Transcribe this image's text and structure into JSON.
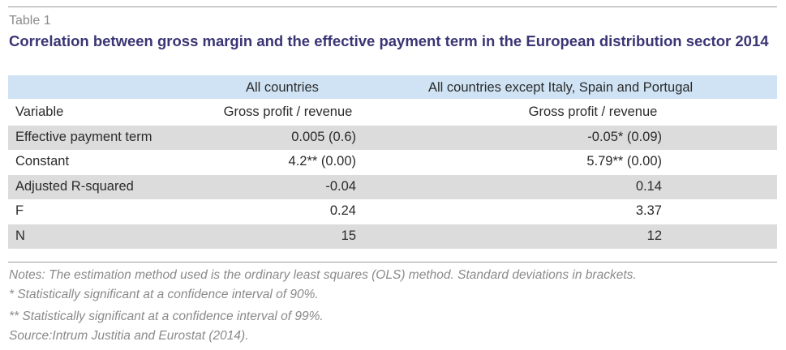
{
  "table_label": "Table 1",
  "title": "Correlation between gross margin and the effective payment term in the European distribution sector 2014",
  "columns": {
    "group_a": "All countries",
    "group_b": "All countries except Italy, Spain and Portugal"
  },
  "subheader": {
    "variable": "Variable",
    "a": "Gross profit / revenue",
    "b": "Gross profit / revenue"
  },
  "rows": [
    {
      "variable": "Effective payment term",
      "a": "0.005 (0.6)",
      "b": "-0.05* (0.09)"
    },
    {
      "variable": "Constant",
      "a": "4.2** (0.00)",
      "b": "5.79** (0.00)"
    },
    {
      "variable": "Adjusted R-squared",
      "a": "-0.04",
      "b": "0.14"
    },
    {
      "variable": "F",
      "a": "0.24",
      "b": "3.37"
    },
    {
      "variable": "N",
      "a": "15",
      "b": "12"
    }
  ],
  "notes": [
    "Notes: The estimation method used is the ordinary least squares (OLS) method. Standard deviations in brackets.",
    "* Statistically significant at a confidence interval of 90%.",
    "** Statistically significant at a confidence interval of 99%.",
    "Source:Intrum Justitia and Eurostat (2014)."
  ]
}
